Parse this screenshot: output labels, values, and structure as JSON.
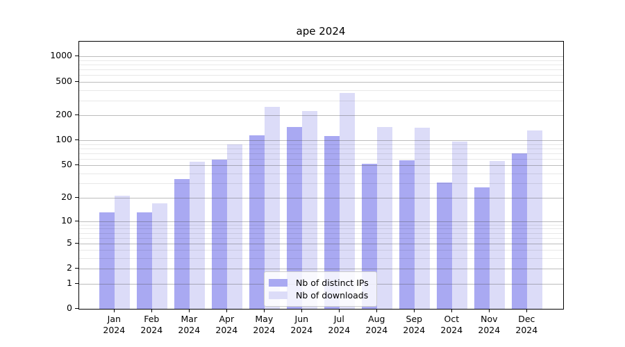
{
  "chart_data": {
    "type": "bar",
    "title": "ape 2024",
    "categories": [
      {
        "month": "Jan",
        "year": "2024"
      },
      {
        "month": "Feb",
        "year": "2024"
      },
      {
        "month": "Mar",
        "year": "2024"
      },
      {
        "month": "Apr",
        "year": "2024"
      },
      {
        "month": "May",
        "year": "2024"
      },
      {
        "month": "Jun",
        "year": "2024"
      },
      {
        "month": "Jul",
        "year": "2024"
      },
      {
        "month": "Aug",
        "year": "2024"
      },
      {
        "month": "Sep",
        "year": "2024"
      },
      {
        "month": "Oct",
        "year": "2024"
      },
      {
        "month": "Nov",
        "year": "2024"
      },
      {
        "month": "Dec",
        "year": "2024"
      }
    ],
    "series": [
      {
        "name": "Nb of distinct IPs",
        "color": "#a9a9f2",
        "values": [
          13,
          13,
          34,
          58,
          115,
          143,
          112,
          52,
          57,
          31,
          27,
          69
        ]
      },
      {
        "name": "Nb of downloads",
        "color": "#dcdcf8",
        "values": [
          21,
          17,
          55,
          90,
          250,
          225,
          368,
          143,
          141,
          96,
          56,
          130
        ]
      }
    ],
    "yticks": [
      0,
      1,
      2,
      5,
      10,
      20,
      50,
      100,
      200,
      500,
      1000
    ],
    "minor_yticks": [
      3,
      4,
      6,
      7,
      8,
      9,
      30,
      40,
      60,
      70,
      80,
      90,
      300,
      400,
      600,
      700,
      800,
      900
    ],
    "scale": "log1p",
    "ylim": [
      0,
      1500
    ],
    "xlabel": "",
    "ylabel": "",
    "grid": "both",
    "legend_position": "lower-center"
  }
}
